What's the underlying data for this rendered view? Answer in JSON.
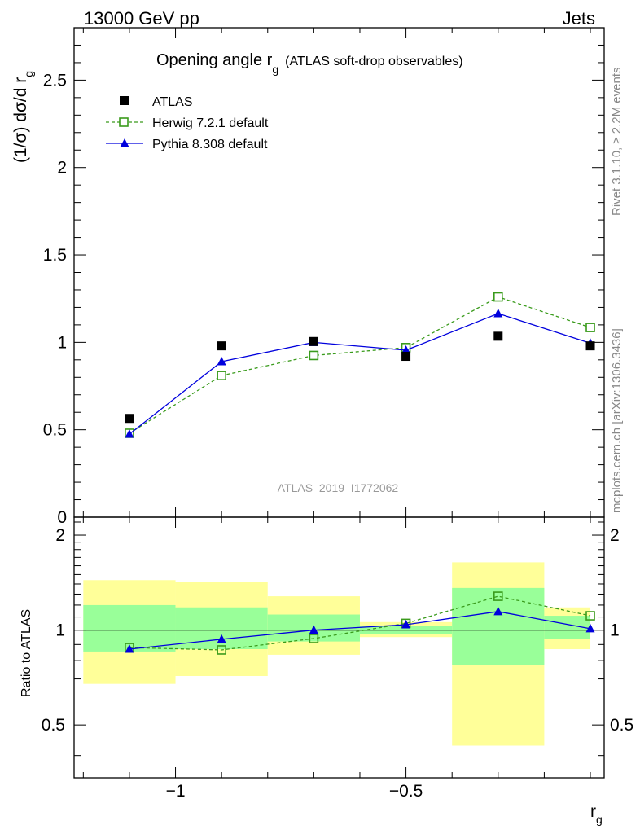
{
  "header": {
    "energy_label": "13000 GeV pp",
    "process_label": "Jets"
  },
  "side_labels": {
    "rivet": "Rivet 3.1.10, ≥ 2.2M events",
    "mcplots": "mcplots.cern.ch [arXiv:1306.3436]"
  },
  "chart_data": {
    "type": "line",
    "title_main": "Opening angle r",
    "title_sub": "g",
    "title_rest": "(ATLAS soft-drop observables)",
    "analysis_id": "ATLAS_2019_I1772062",
    "xlabel": "r",
    "xlabel_sub": "g",
    "ylabel_upper": "(1/σ) dσ/d r",
    "ylabel_upper_sub": "g",
    "ylabel_lower": "Ratio to ATLAS",
    "x_ticks": [
      -1,
      -0.5
    ],
    "x_tick_labels": [
      "−1",
      "−0.5"
    ],
    "xlim": [
      -1.22,
      -0.07
    ],
    "upper_ylim": [
      0,
      2.8
    ],
    "upper_y_ticks": [
      0,
      0.5,
      1,
      1.5,
      2,
      2.5
    ],
    "upper_y_tick_labels": [
      "0",
      "0.5",
      "1",
      "1.5",
      "2",
      "2.5"
    ],
    "lower_ylim": [
      0.34,
      2.28
    ],
    "lower_y_ticks": [
      0.5,
      1,
      2
    ],
    "lower_y_tick_labels": [
      "0.5",
      "1",
      "2"
    ],
    "x_centers": [
      -1.1,
      -0.9,
      -0.7,
      -0.5,
      -0.3,
      -0.1
    ],
    "bin_edges": [
      -1.2,
      -1.0,
      -0.8,
      -0.6,
      -0.4,
      -0.2,
      -0.1
    ],
    "ratio_reference": 1,
    "legend": {
      "position": "top-left",
      "atlas": "ATLAS",
      "herwig": "Herwig 7.2.1 default",
      "pythia": "Pythia 8.308 default"
    },
    "colors": {
      "data": "#000000",
      "herwig": "#3a9b1c",
      "pythia": "#0000dd",
      "band_inner": "#99ff99",
      "band_outer": "#ffff99"
    },
    "series": [
      {
        "name": "ATLAS",
        "values": [
          0.565,
          0.98,
          1.005,
          0.92,
          1.035,
          0.98
        ]
      },
      {
        "name": "Herwig 7.2.1 default",
        "values": [
          0.48,
          0.81,
          0.925,
          0.97,
          1.26,
          1.085
        ]
      },
      {
        "name": "Pythia 8.308 default",
        "values": [
          0.475,
          0.89,
          1.0,
          0.955,
          1.165,
          0.995
        ]
      }
    ],
    "ratio_series": [
      {
        "name": "Herwig 7.2.1 default",
        "values": [
          0.88,
          0.865,
          0.94,
          1.05,
          1.28,
          1.11
        ]
      },
      {
        "name": "Pythia 8.308 default",
        "values": [
          0.87,
          0.935,
          1.0,
          1.04,
          1.145,
          1.01
        ]
      }
    ],
    "bands": {
      "inner_low": [
        0.855,
        0.87,
        0.92,
        0.97,
        0.775,
        0.94
      ],
      "inner_high": [
        1.2,
        1.18,
        1.12,
        1.03,
        1.36,
        1.11
      ],
      "outer_low": [
        0.675,
        0.715,
        0.835,
        0.95,
        0.43,
        0.87
      ],
      "outer_high": [
        1.44,
        1.42,
        1.28,
        1.06,
        1.64,
        1.18
      ]
    }
  }
}
